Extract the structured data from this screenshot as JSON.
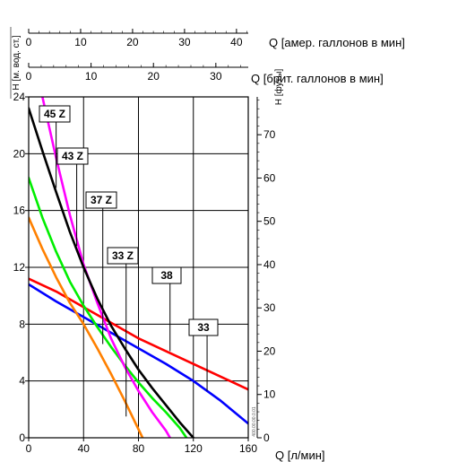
{
  "chart_data": {
    "type": "line",
    "xlabel": "Q [л/мин]",
    "ylabel_left": "H [м. вод. ст.]",
    "ylabel_right": "H [футы]",
    "top_axis_us": {
      "label": "Q [амер. галлонов в мин]",
      "ticks": [
        0,
        10,
        20,
        30,
        40
      ]
    },
    "top_axis_uk": {
      "label": "Q [брит. галлонов в мин]",
      "ticks": [
        0,
        10,
        20,
        30
      ]
    },
    "xlim": [
      0,
      160
    ],
    "ylim": [
      0,
      24
    ],
    "x_ticks": [
      0,
      40,
      80,
      120,
      160
    ],
    "y_ticks": [
      0,
      4,
      8,
      12,
      16,
      20,
      24
    ],
    "y_right_ticks": [
      0,
      10,
      20,
      30,
      40,
      50,
      60,
      70
    ],
    "grid": true,
    "series": [
      {
        "name": "45 Z",
        "color": "#ff00ff",
        "x": [
          10,
          20,
          30,
          40,
          50,
          60,
          70,
          80,
          90,
          100,
          103
        ],
        "y": [
          24,
          19.7,
          15.7,
          12.2,
          9.5,
          7.0,
          5.0,
          3.3,
          1.8,
          0.5,
          0
        ]
      },
      {
        "name": "43 Z",
        "color": "#000000",
        "x": [
          0,
          10,
          20,
          30,
          40,
          50,
          60,
          70,
          80,
          90,
          100,
          110,
          120
        ],
        "y": [
          23.2,
          20.2,
          17.3,
          14.5,
          12.0,
          9.8,
          7.9,
          6.3,
          4.8,
          3.5,
          2.3,
          1.1,
          0
        ]
      },
      {
        "name": "37 Z",
        "color": "#00ee00",
        "x": [
          0,
          10,
          20,
          30,
          40,
          50,
          60,
          70,
          80,
          90,
          100,
          110,
          115
        ],
        "y": [
          18.3,
          15.5,
          13.1,
          11.0,
          9.3,
          7.8,
          6.4,
          5.1,
          3.9,
          2.8,
          1.8,
          0.7,
          0
        ]
      },
      {
        "name": "33 Z",
        "color": "#ff8000",
        "x": [
          0,
          10,
          20,
          30,
          40,
          50,
          60,
          70,
          80,
          83
        ],
        "y": [
          15.5,
          13.3,
          11.3,
          9.5,
          8.0,
          6.3,
          4.5,
          2.6,
          0.6,
          0
        ]
      },
      {
        "name": "38",
        "color": "#ff0000",
        "x": [
          0,
          20,
          40,
          60,
          80,
          100,
          120,
          140,
          160
        ],
        "y": [
          11.2,
          10.3,
          9.2,
          8.1,
          7.0,
          6.1,
          5.2,
          4.3,
          3.4
        ]
      },
      {
        "name": "33",
        "color": "#0000ff",
        "x": [
          0,
          20,
          40,
          60,
          80,
          100,
          120,
          140,
          160
        ],
        "y": [
          10.8,
          9.6,
          8.5,
          7.4,
          6.3,
          5.2,
          4.0,
          2.6,
          1.0
        ]
      }
    ],
    "labels": [
      {
        "text": "45 Z",
        "anchor_x": 20,
        "anchor_y": 17.6
      },
      {
        "text": "43 Z",
        "anchor_x": 35,
        "anchor_y": 13.5
      },
      {
        "text": "37 Z",
        "anchor_x": 54,
        "anchor_y": 6.6
      },
      {
        "text": "33 Z",
        "anchor_x": 71,
        "anchor_y": 1.5
      },
      {
        "text": "38",
        "anchor_x": 103,
        "anchor_y": 6.1
      },
      {
        "text": "33",
        "anchor_x": 130,
        "anchor_y": 3.3
      }
    ],
    "side_code": "400.00.00.0.01"
  }
}
